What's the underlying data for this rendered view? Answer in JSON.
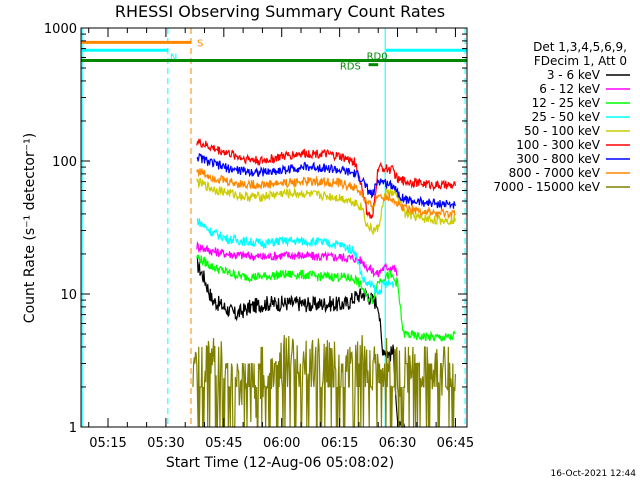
{
  "chart_data": {
    "type": "line",
    "title": "RHESSI Observing Summary Count Rates",
    "xlabel": "Start Time (12-Aug-06 05:08:02)",
    "ylabel": "Count Rate (s⁻¹ detector⁻¹)",
    "y_scale": "log",
    "ylim": [
      1,
      1000
    ],
    "xlim_minutes_after_0500": [
      8,
      108
    ],
    "x_ticks": [
      {
        "t": 15,
        "label": "05:15"
      },
      {
        "t": 30,
        "label": "05:30"
      },
      {
        "t": 45,
        "label": "05:45"
      },
      {
        "t": 60,
        "label": "06:00"
      },
      {
        "t": 75,
        "label": "06:15"
      },
      {
        "t": 90,
        "label": "06:30"
      },
      {
        "t": 105,
        "label": "06:45"
      }
    ],
    "y_ticks": [
      {
        "v": 1,
        "label": "1"
      },
      {
        "v": 10,
        "label": "10"
      },
      {
        "v": 100,
        "label": "100"
      },
      {
        "v": 1000,
        "label": "1000"
      }
    ],
    "legend_header": [
      "Det 1,3,4,5,6,9,",
      "FDecim 1, Att 0"
    ],
    "legend_position": "top-right, outside plot",
    "series": [
      {
        "name": "3 - 6 keV",
        "color": "#000000",
        "points": [
          [
            38,
            17
          ],
          [
            40,
            13
          ],
          [
            42,
            9
          ],
          [
            45,
            8
          ],
          [
            48,
            7
          ],
          [
            52,
            8
          ],
          [
            56,
            8.5
          ],
          [
            60,
            8.5
          ],
          [
            64,
            8.5
          ],
          [
            68,
            8.3
          ],
          [
            72,
            8.5
          ],
          [
            75,
            8.3
          ],
          [
            77,
            8.5
          ],
          [
            79,
            9.5
          ],
          [
            81,
            10
          ],
          [
            82,
            10
          ],
          [
            83.5,
            9
          ],
          [
            85,
            8.5
          ],
          [
            86,
            4
          ],
          [
            88,
            3.5
          ],
          [
            89,
            3.7
          ],
          [
            90,
            1
          ],
          [
            92,
            0.9
          ]
        ]
      },
      {
        "name": "6 - 12 keV",
        "color": "#ff00ff",
        "points": [
          [
            38,
            23
          ],
          [
            42,
            21
          ],
          [
            46,
            20
          ],
          [
            50,
            19.5
          ],
          [
            55,
            19
          ],
          [
            60,
            19.5
          ],
          [
            65,
            19.5
          ],
          [
            70,
            19
          ],
          [
            75,
            19
          ],
          [
            79,
            18.5
          ],
          [
            81,
            17.5
          ],
          [
            82,
            16
          ],
          [
            83.5,
            15
          ],
          [
            85,
            14
          ],
          [
            86,
            15.5
          ],
          [
            88,
            16
          ],
          [
            89,
            16
          ],
          [
            90,
            14
          ]
        ]
      },
      {
        "name": "12 - 25 keV",
        "color": "#00ff00",
        "points": [
          [
            38,
            19
          ],
          [
            42,
            16
          ],
          [
            46,
            14.5
          ],
          [
            50,
            13.5
          ],
          [
            55,
            13.5
          ],
          [
            60,
            14
          ],
          [
            65,
            14
          ],
          [
            70,
            13.5
          ],
          [
            75,
            13.5
          ],
          [
            79,
            13
          ],
          [
            81,
            11
          ],
          [
            82,
            9.5
          ],
          [
            83.5,
            9
          ],
          [
            85,
            12.5
          ],
          [
            88,
            14
          ],
          [
            90,
            12
          ],
          [
            91.5,
            5
          ],
          [
            92,
            5
          ],
          [
            95,
            4.8
          ],
          [
            100,
            4.7
          ],
          [
            104,
            4.7
          ],
          [
            105,
            5
          ]
        ]
      },
      {
        "name": "25 - 50 keV",
        "color": "#00ffff",
        "points": [
          [
            38,
            36
          ],
          [
            42,
            29
          ],
          [
            46,
            26
          ],
          [
            50,
            25
          ],
          [
            55,
            24
          ],
          [
            60,
            25
          ],
          [
            65,
            25
          ],
          [
            70,
            24.5
          ],
          [
            75,
            23.5
          ],
          [
            79,
            21
          ],
          [
            81,
            13
          ],
          [
            82,
            12
          ],
          [
            83.5,
            11.5
          ],
          [
            85,
            10
          ],
          [
            86,
            11.5
          ],
          [
            88,
            12
          ],
          [
            89,
            12
          ]
        ]
      },
      {
        "name": "50 - 100 keV",
        "color": "#cccc00",
        "points": [
          [
            38,
            70
          ],
          [
            42,
            62
          ],
          [
            46,
            58
          ],
          [
            50,
            54
          ],
          [
            55,
            54
          ],
          [
            60,
            57
          ],
          [
            65,
            57
          ],
          [
            70,
            55
          ],
          [
            75,
            53
          ],
          [
            79,
            49
          ],
          [
            81,
            44
          ],
          [
            82,
            33
          ],
          [
            83.5,
            30
          ],
          [
            85,
            31
          ],
          [
            87,
            60
          ],
          [
            89,
            56
          ],
          [
            90,
            55
          ],
          [
            92,
            40
          ],
          [
            96,
            37
          ],
          [
            100,
            36
          ],
          [
            104,
            36
          ],
          [
            105,
            37
          ]
        ]
      },
      {
        "name": "100 - 300 keV",
        "color": "#ff0000",
        "points": [
          [
            38,
            140
          ],
          [
            42,
            125
          ],
          [
            46,
            115
          ],
          [
            50,
            105
          ],
          [
            55,
            100
          ],
          [
            60,
            108
          ],
          [
            65,
            114
          ],
          [
            70,
            114
          ],
          [
            75,
            108
          ],
          [
            79,
            98
          ],
          [
            81,
            60
          ],
          [
            82,
            42
          ],
          [
            83.5,
            36
          ],
          [
            85,
            90
          ],
          [
            87,
            88
          ],
          [
            89,
            85
          ],
          [
            90,
            72
          ],
          [
            93,
            70
          ],
          [
            96,
            68
          ],
          [
            100,
            66
          ],
          [
            104,
            65
          ],
          [
            105,
            65
          ]
        ]
      },
      {
        "name": "300 - 800 keV",
        "color": "#0000ff",
        "points": [
          [
            38,
            108
          ],
          [
            42,
            96
          ],
          [
            46,
            88
          ],
          [
            50,
            84
          ],
          [
            55,
            82
          ],
          [
            60,
            85
          ],
          [
            65,
            90
          ],
          [
            70,
            90
          ],
          [
            75,
            85
          ],
          [
            79,
            80
          ],
          [
            81,
            72
          ],
          [
            82,
            62
          ],
          [
            83.5,
            55
          ],
          [
            85,
            72
          ],
          [
            87,
            68
          ],
          [
            89,
            66
          ],
          [
            90,
            58
          ],
          [
            92,
            51
          ],
          [
            96,
            49
          ],
          [
            100,
            48
          ],
          [
            104,
            47
          ],
          [
            105,
            46
          ]
        ]
      },
      {
        "name": "800 - 7000 keV",
        "color": "#ff8800",
        "points": [
          [
            38,
            85
          ],
          [
            42,
            76
          ],
          [
            46,
            70
          ],
          [
            50,
            67
          ],
          [
            55,
            66
          ],
          [
            60,
            68
          ],
          [
            65,
            70
          ],
          [
            70,
            70
          ],
          [
            75,
            68
          ],
          [
            79,
            63
          ],
          [
            81,
            55
          ],
          [
            82,
            48
          ],
          [
            83.5,
            45
          ],
          [
            85,
            55
          ],
          [
            87,
            54
          ],
          [
            89,
            52
          ],
          [
            90,
            47
          ],
          [
            92,
            45
          ],
          [
            96,
            42
          ],
          [
            100,
            40
          ],
          [
            104,
            40
          ],
          [
            105,
            40
          ]
        ]
      },
      {
        "name": "7000 - 15000 keV",
        "color": "#808000",
        "points": [
          [
            37,
            3.5
          ],
          [
            38,
            2.5
          ],
          [
            40,
            3
          ],
          [
            44,
            3.5
          ],
          [
            48,
            2.2
          ],
          [
            52,
            1.5
          ],
          [
            55,
            2
          ],
          [
            58,
            3
          ],
          [
            62,
            3.5
          ],
          [
            66,
            3
          ],
          [
            70,
            3.3
          ],
          [
            74,
            3
          ],
          [
            76,
            3.5
          ],
          [
            78,
            3
          ],
          [
            80,
            3.5
          ],
          [
            82,
            3
          ],
          [
            84,
            2.8
          ],
          [
            86,
            3.2
          ],
          [
            88,
            3
          ],
          [
            90,
            2.5
          ],
          [
            94,
            2.6
          ],
          [
            98,
            2.5
          ],
          [
            102,
            2.6
          ],
          [
            105,
            2.5
          ]
        ]
      }
    ],
    "annotations": [
      {
        "label": "S",
        "color": "#ff8800",
        "bar": [
          8,
          36.5
        ],
        "level": 780
      },
      {
        "label": "N",
        "color": "#00ffff",
        "bar": [
          8,
          30.5
        ],
        "level": 680
      },
      {
        "label": "N",
        "color": "#00ffff",
        "bar": [
          87,
          108
        ],
        "level": 680
      },
      {
        "label": "",
        "color": "#008800",
        "bar": [
          8,
          108
        ],
        "level": 570
      },
      {
        "label": "RD0",
        "color": "#008800",
        "bar": [
          82.5,
          85
        ],
        "level": 530
      },
      {
        "label": "RDS",
        "color": "#008800",
        "bar": [
          0,
          0
        ],
        "level": 530
      }
    ],
    "vertical_markers": [
      {
        "t": 8.3,
        "color": "#00ffff",
        "style": "solid"
      },
      {
        "t": 30.5,
        "color": "#00ffff",
        "style": "dashed"
      },
      {
        "t": 36.5,
        "color": "#ff8800",
        "style": "dashed"
      },
      {
        "t": 86.8,
        "color": "#00ffff",
        "style": "solid"
      },
      {
        "t": 107.5,
        "color": "#00ffff",
        "style": "dashed"
      }
    ],
    "timestamp": "16-Oct-2021 12:44"
  }
}
